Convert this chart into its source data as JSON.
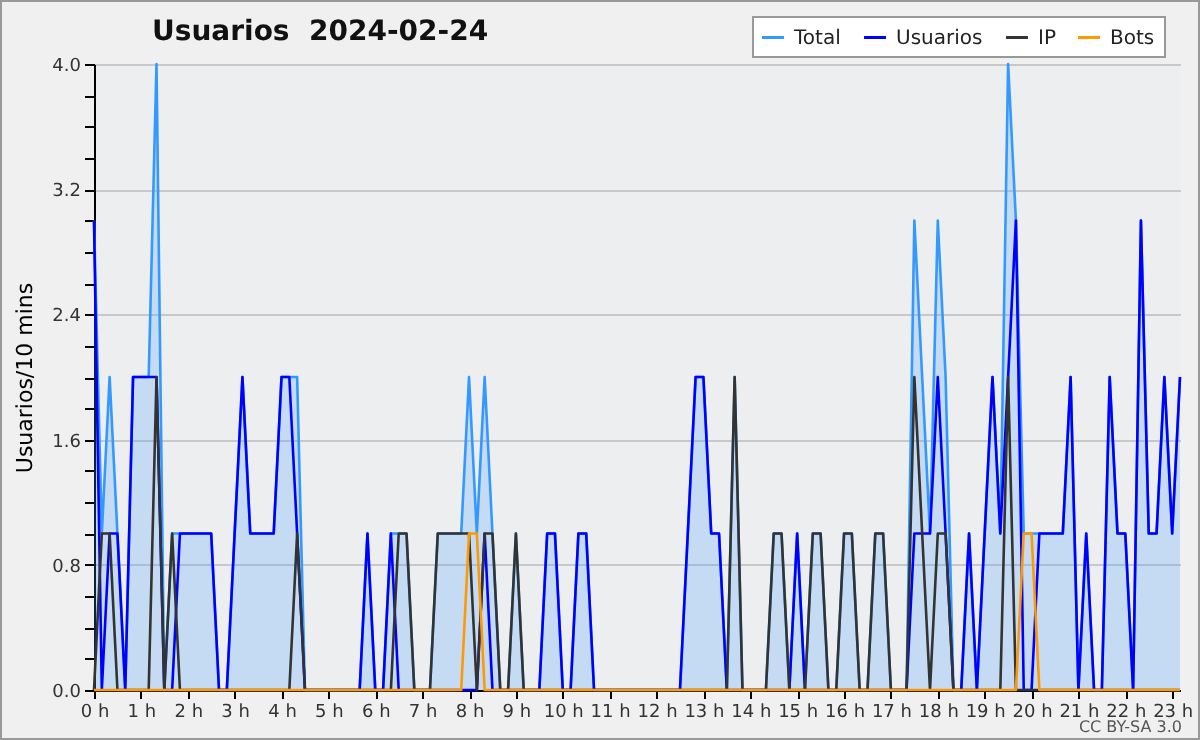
{
  "chart_data": {
    "type": "line",
    "title": "Usuarios  2024-02-24",
    "ylabel": "Usuarios/10 mins",
    "annotations": [
      "CC BY-SA 3.0"
    ],
    "x": [
      "2024-02-24T00:00",
      "2024-02-24T00:10",
      "2024-02-24T00:20",
      "2024-02-24T00:30",
      "2024-02-24T00:40",
      "2024-02-24T00:50",
      "2024-02-24T01:00",
      "2024-02-24T01:10",
      "2024-02-24T01:20",
      "2024-02-24T01:30",
      "2024-02-24T01:40",
      "2024-02-24T01:50",
      "2024-02-24T02:00",
      "2024-02-24T02:10",
      "2024-02-24T02:20",
      "2024-02-24T02:30",
      "2024-02-24T02:40",
      "2024-02-24T02:50",
      "2024-02-24T03:00",
      "2024-02-24T03:10",
      "2024-02-24T03:20",
      "2024-02-24T03:30",
      "2024-02-24T03:40",
      "2024-02-24T03:50",
      "2024-02-24T04:00",
      "2024-02-24T04:10",
      "2024-02-24T04:20",
      "2024-02-24T04:30",
      "2024-02-24T04:40",
      "2024-02-24T04:50",
      "2024-02-24T05:00",
      "2024-02-24T05:10",
      "2024-02-24T05:20",
      "2024-02-24T05:30",
      "2024-02-24T05:40",
      "2024-02-24T05:50",
      "2024-02-24T06:00",
      "2024-02-24T06:10",
      "2024-02-24T06:20",
      "2024-02-24T06:30",
      "2024-02-24T06:40",
      "2024-02-24T06:50",
      "2024-02-24T07:00",
      "2024-02-24T07:10",
      "2024-02-24T07:20",
      "2024-02-24T07:30",
      "2024-02-24T07:40",
      "2024-02-24T07:50",
      "2024-02-24T08:00",
      "2024-02-24T08:10",
      "2024-02-24T08:20",
      "2024-02-24T08:30",
      "2024-02-24T08:40",
      "2024-02-24T08:50",
      "2024-02-24T09:00",
      "2024-02-24T09:10",
      "2024-02-24T09:20",
      "2024-02-24T09:30",
      "2024-02-24T09:40",
      "2024-02-24T09:50",
      "2024-02-24T10:00",
      "2024-02-24T10:10",
      "2024-02-24T10:20",
      "2024-02-24T10:30",
      "2024-02-24T10:40",
      "2024-02-24T10:50",
      "2024-02-24T11:00",
      "2024-02-24T11:10",
      "2024-02-24T11:20",
      "2024-02-24T11:30",
      "2024-02-24T11:40",
      "2024-02-24T11:50",
      "2024-02-24T12:00",
      "2024-02-24T12:10",
      "2024-02-24T12:20",
      "2024-02-24T12:30",
      "2024-02-24T12:40",
      "2024-02-24T12:50",
      "2024-02-24T13:00",
      "2024-02-24T13:10",
      "2024-02-24T13:20",
      "2024-02-24T13:30",
      "2024-02-24T13:40",
      "2024-02-24T13:50",
      "2024-02-24T14:00",
      "2024-02-24T14:10",
      "2024-02-24T14:20",
      "2024-02-24T14:30",
      "2024-02-24T14:40",
      "2024-02-24T14:50",
      "2024-02-24T15:00",
      "2024-02-24T15:10",
      "2024-02-24T15:20",
      "2024-02-24T15:30",
      "2024-02-24T15:40",
      "2024-02-24T15:50",
      "2024-02-24T16:00",
      "2024-02-24T16:10",
      "2024-02-24T16:20",
      "2024-02-24T16:30",
      "2024-02-24T16:40",
      "2024-02-24T16:50",
      "2024-02-24T17:00",
      "2024-02-24T17:10",
      "2024-02-24T17:20",
      "2024-02-24T17:30",
      "2024-02-24T17:40",
      "2024-02-24T17:50",
      "2024-02-24T18:00",
      "2024-02-24T18:10",
      "2024-02-24T18:20",
      "2024-02-24T18:30",
      "2024-02-24T18:40",
      "2024-02-24T18:50",
      "2024-02-24T19:00",
      "2024-02-24T19:10",
      "2024-02-24T19:20",
      "2024-02-24T19:30",
      "2024-02-24T19:40",
      "2024-02-24T19:50",
      "2024-02-24T20:00",
      "2024-02-24T20:10",
      "2024-02-24T20:20",
      "2024-02-24T20:30",
      "2024-02-24T20:40",
      "2024-02-24T20:50",
      "2024-02-24T21:00",
      "2024-02-24T21:10",
      "2024-02-24T21:20",
      "2024-02-24T21:30",
      "2024-02-24T21:40",
      "2024-02-24T21:50",
      "2024-02-24T22:00",
      "2024-02-24T22:10",
      "2024-02-24T22:20",
      "2024-02-24T22:30",
      "2024-02-24T22:40",
      "2024-02-24T22:50",
      "2024-02-24T23:00",
      "2024-02-24T23:10"
    ],
    "series": [
      {
        "name": "Total",
        "type": "area",
        "color": "#3399ff",
        "values": [
          3,
          1,
          2,
          1,
          0,
          2,
          2,
          2,
          4,
          0,
          1,
          1,
          1,
          1,
          1,
          1,
          0,
          0,
          1,
          2,
          1,
          1,
          1,
          1,
          2,
          2,
          2,
          0,
          0,
          0,
          0,
          0,
          0,
          0,
          0,
          1,
          0,
          0,
          1,
          1,
          1,
          0,
          0,
          0,
          1,
          1,
          1,
          1,
          2,
          1,
          2,
          1,
          0,
          0,
          1,
          0,
          0,
          0,
          1,
          1,
          0,
          0,
          1,
          1,
          0,
          0,
          0,
          0,
          0,
          0,
          0,
          0,
          0,
          0,
          0,
          0,
          1,
          2,
          2,
          1,
          1,
          0,
          2,
          0,
          0,
          0,
          0,
          1,
          1,
          0,
          1,
          0,
          1,
          1,
          0,
          0,
          1,
          1,
          0,
          0,
          1,
          1,
          0,
          0,
          0,
          3,
          2,
          1,
          3,
          2,
          0,
          0,
          1,
          0,
          1,
          2,
          1,
          4,
          3,
          1,
          1,
          1,
          1,
          1,
          1,
          2,
          0,
          1,
          0,
          0,
          2,
          1,
          1,
          0,
          3,
          1,
          1,
          2,
          1,
          2
        ]
      },
      {
        "name": "Usuarios",
        "color": "#0000ff",
        "values": [
          3,
          0,
          1,
          1,
          0,
          2,
          2,
          2,
          2,
          0,
          0,
          1,
          1,
          1,
          1,
          1,
          0,
          0,
          1,
          2,
          1,
          1,
          1,
          1,
          2,
          2,
          1,
          0,
          0,
          0,
          0,
          0,
          0,
          0,
          0,
          1,
          0,
          0,
          1,
          0,
          0,
          0,
          0,
          0,
          0,
          0,
          0,
          0,
          0,
          0,
          1,
          0,
          0,
          0,
          0,
          0,
          0,
          0,
          1,
          1,
          0,
          0,
          1,
          1,
          0,
          0,
          0,
          0,
          0,
          0,
          0,
          0,
          0,
          0,
          0,
          0,
          1,
          2,
          2,
          1,
          1,
          0,
          0,
          0,
          0,
          0,
          0,
          0,
          0,
          0,
          1,
          0,
          0,
          0,
          0,
          0,
          0,
          0,
          0,
          0,
          0,
          0,
          0,
          0,
          0,
          1,
          1,
          1,
          2,
          1,
          0,
          0,
          1,
          0,
          1,
          2,
          1,
          2,
          3,
          0,
          0,
          1,
          1,
          1,
          1,
          2,
          0,
          1,
          0,
          0,
          2,
          1,
          1,
          0,
          3,
          1,
          1,
          2,
          1,
          2
        ]
      },
      {
        "name": "IP",
        "color": "#333333",
        "values": [
          0,
          1,
          1,
          0,
          0,
          0,
          0,
          0,
          2,
          0,
          1,
          0,
          0,
          0,
          0,
          0,
          0,
          0,
          0,
          0,
          0,
          0,
          0,
          0,
          0,
          0,
          1,
          0,
          0,
          0,
          0,
          0,
          0,
          0,
          0,
          0,
          0,
          0,
          0,
          1,
          1,
          0,
          0,
          0,
          1,
          1,
          1,
          1,
          1,
          0,
          1,
          1,
          0,
          0,
          1,
          0,
          0,
          0,
          0,
          0,
          0,
          0,
          0,
          0,
          0,
          0,
          0,
          0,
          0,
          0,
          0,
          0,
          0,
          0,
          0,
          0,
          0,
          0,
          0,
          0,
          0,
          0,
          2,
          0,
          0,
          0,
          0,
          1,
          1,
          0,
          0,
          0,
          1,
          1,
          0,
          0,
          1,
          1,
          0,
          0,
          1,
          1,
          0,
          0,
          0,
          2,
          1,
          0,
          1,
          1,
          0,
          0,
          0,
          0,
          0,
          0,
          0,
          2,
          0,
          0,
          0,
          0,
          0,
          0,
          0,
          0,
          0,
          0,
          0,
          0,
          0,
          0,
          0,
          0,
          0,
          0,
          0,
          0,
          0,
          0
        ]
      },
      {
        "name": "Bots",
        "color": "#ff9900",
        "values": [
          0,
          0,
          0,
          0,
          0,
          0,
          0,
          0,
          0,
          0,
          0,
          0,
          0,
          0,
          0,
          0,
          0,
          0,
          0,
          0,
          0,
          0,
          0,
          0,
          0,
          0,
          0,
          0,
          0,
          0,
          0,
          0,
          0,
          0,
          0,
          0,
          0,
          0,
          0,
          0,
          0,
          0,
          0,
          0,
          0,
          0,
          0,
          0,
          1,
          1,
          0,
          0,
          0,
          0,
          0,
          0,
          0,
          0,
          0,
          0,
          0,
          0,
          0,
          0,
          0,
          0,
          0,
          0,
          0,
          0,
          0,
          0,
          0,
          0,
          0,
          0,
          0,
          0,
          0,
          0,
          0,
          0,
          0,
          0,
          0,
          0,
          0,
          0,
          0,
          0,
          0,
          0,
          0,
          0,
          0,
          0,
          0,
          0,
          0,
          0,
          0,
          0,
          0,
          0,
          0,
          0,
          0,
          0,
          0,
          0,
          0,
          0,
          0,
          0,
          0,
          0,
          0,
          0,
          0,
          1,
          1,
          0,
          0,
          0,
          0,
          0,
          0,
          0,
          0,
          0,
          0,
          0,
          0,
          0,
          0,
          0,
          0,
          0,
          0,
          0
        ]
      }
    ],
    "xlim": [
      "2024-02-24T00:00",
      "2024-02-24T23:10"
    ],
    "xticks": [
      {
        "value": "2024-02-24T00:00",
        "label": "0 h"
      },
      {
        "value": "2024-02-24T01:00",
        "label": "1 h"
      },
      {
        "value": "2024-02-24T02:00",
        "label": "2 h"
      },
      {
        "value": "2024-02-24T03:00",
        "label": "3 h"
      },
      {
        "value": "2024-02-24T04:00",
        "label": "4 h"
      },
      {
        "value": "2024-02-24T05:00",
        "label": "5 h"
      },
      {
        "value": "2024-02-24T06:00",
        "label": "6 h"
      },
      {
        "value": "2024-02-24T07:00",
        "label": "7 h"
      },
      {
        "value": "2024-02-24T08:00",
        "label": "8 h"
      },
      {
        "value": "2024-02-24T09:00",
        "label": "9 h"
      },
      {
        "value": "2024-02-24T10:00",
        "label": "10 h"
      },
      {
        "value": "2024-02-24T11:00",
        "label": "11 h"
      },
      {
        "value": "2024-02-24T12:00",
        "label": "12 h"
      },
      {
        "value": "2024-02-24T13:00",
        "label": "13 h"
      },
      {
        "value": "2024-02-24T14:00",
        "label": "14 h"
      },
      {
        "value": "2024-02-24T15:00",
        "label": "15 h"
      },
      {
        "value": "2024-02-24T16:00",
        "label": "16 h"
      },
      {
        "value": "2024-02-24T17:00",
        "label": "17 h"
      },
      {
        "value": "2024-02-24T18:00",
        "label": "18 h"
      },
      {
        "value": "2024-02-24T19:00",
        "label": "19 h"
      },
      {
        "value": "2024-02-24T20:00",
        "label": "20 h"
      },
      {
        "value": "2024-02-24T21:00",
        "label": "21 h"
      },
      {
        "value": "2024-02-24T22:00",
        "label": "22 h"
      },
      {
        "value": "2024-02-24T23:00",
        "label": "23 h"
      }
    ],
    "ylim": [
      0,
      4
    ],
    "yticks": [
      {
        "value": 0,
        "label": "0.0"
      },
      {
        "value": 0.2,
        "label": null
      },
      {
        "value": 0.4,
        "label": null
      },
      {
        "value": 0.6,
        "label": null
      },
      {
        "value": 0.8,
        "label": "0.8"
      },
      {
        "value": 1,
        "label": null
      },
      {
        "value": 1.2,
        "label": null
      },
      {
        "value": 1.4,
        "label": null
      },
      {
        "value": 1.6,
        "label": "1.6"
      },
      {
        "value": 1.8,
        "label": null
      },
      {
        "value": 2,
        "label": null
      },
      {
        "value": 2.2,
        "label": null
      },
      {
        "value": 2.4,
        "label": "2.4"
      },
      {
        "value": 2.6,
        "label": null
      },
      {
        "value": 2.8,
        "label": null
      },
      {
        "value": 3,
        "label": null
      },
      {
        "value": 3.2,
        "label": "3.2"
      },
      {
        "value": 3.4,
        "label": null
      },
      {
        "value": 3.6,
        "label": null
      },
      {
        "value": 3.8,
        "label": null
      },
      {
        "value": 4,
        "label": "4.0"
      }
    ],
    "grid": "y",
    "legend": "top right"
  }
}
